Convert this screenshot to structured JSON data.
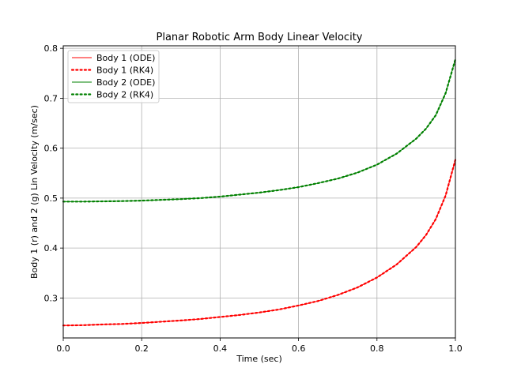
{
  "chart_data": {
    "type": "line",
    "title": "Planar Robotic Arm Body Linear Velocity",
    "xlabel": "Time (sec)",
    "ylabel": "Body 1 (r) and 2 (g) Lin Velocity (m/sec)",
    "xlim": [
      0,
      1
    ],
    "ylim": [
      0.22,
      0.805
    ],
    "xticks": [
      0,
      0.2,
      0.4,
      0.6,
      0.8,
      1.0
    ],
    "xtick_labels": [
      "0.0",
      "0.2",
      "0.4",
      "0.6",
      "0.8",
      "1.0"
    ],
    "yticks": [
      0.3,
      0.4,
      0.5,
      0.6,
      0.7,
      0.8
    ],
    "ytick_labels": [
      "0.3",
      "0.4",
      "0.5",
      "0.6",
      "0.7",
      "0.8"
    ],
    "grid": true,
    "legend_position": "top-left",
    "x": [
      0.0,
      0.05,
      0.1,
      0.15,
      0.2,
      0.25,
      0.3,
      0.35,
      0.4,
      0.45,
      0.5,
      0.55,
      0.6,
      0.65,
      0.7,
      0.75,
      0.8,
      0.85,
      0.9,
      0.925,
      0.95,
      0.975,
      1.0
    ],
    "series": [
      {
        "name": "Body 1 (ODE)",
        "color": "#ff0000",
        "style": "solid",
        "values": [
          0.245,
          0.2455,
          0.247,
          0.248,
          0.25,
          0.2525,
          0.255,
          0.258,
          0.262,
          0.266,
          0.271,
          0.277,
          0.285,
          0.294,
          0.306,
          0.321,
          0.341,
          0.367,
          0.402,
          0.426,
          0.458,
          0.505,
          0.577
        ]
      },
      {
        "name": "Body 1 (RK4)",
        "color": "#ff0000",
        "style": "dotted",
        "values": [
          0.245,
          0.2455,
          0.247,
          0.248,
          0.25,
          0.2525,
          0.255,
          0.258,
          0.262,
          0.266,
          0.271,
          0.277,
          0.285,
          0.294,
          0.306,
          0.321,
          0.341,
          0.367,
          0.402,
          0.426,
          0.458,
          0.505,
          0.577
        ]
      },
      {
        "name": "Body 2 (ODE)",
        "color": "#008000",
        "style": "solid",
        "values": [
          0.493,
          0.493,
          0.4935,
          0.494,
          0.495,
          0.4965,
          0.498,
          0.5,
          0.503,
          0.507,
          0.511,
          0.516,
          0.522,
          0.53,
          0.539,
          0.551,
          0.567,
          0.589,
          0.619,
          0.639,
          0.666,
          0.71,
          0.778
        ]
      },
      {
        "name": "Body 2 (RK4)",
        "color": "#008000",
        "style": "dotted",
        "values": [
          0.493,
          0.493,
          0.4935,
          0.494,
          0.495,
          0.4965,
          0.498,
          0.5,
          0.503,
          0.507,
          0.511,
          0.516,
          0.522,
          0.53,
          0.539,
          0.551,
          0.567,
          0.589,
          0.619,
          0.639,
          0.666,
          0.71,
          0.778
        ]
      }
    ]
  }
}
